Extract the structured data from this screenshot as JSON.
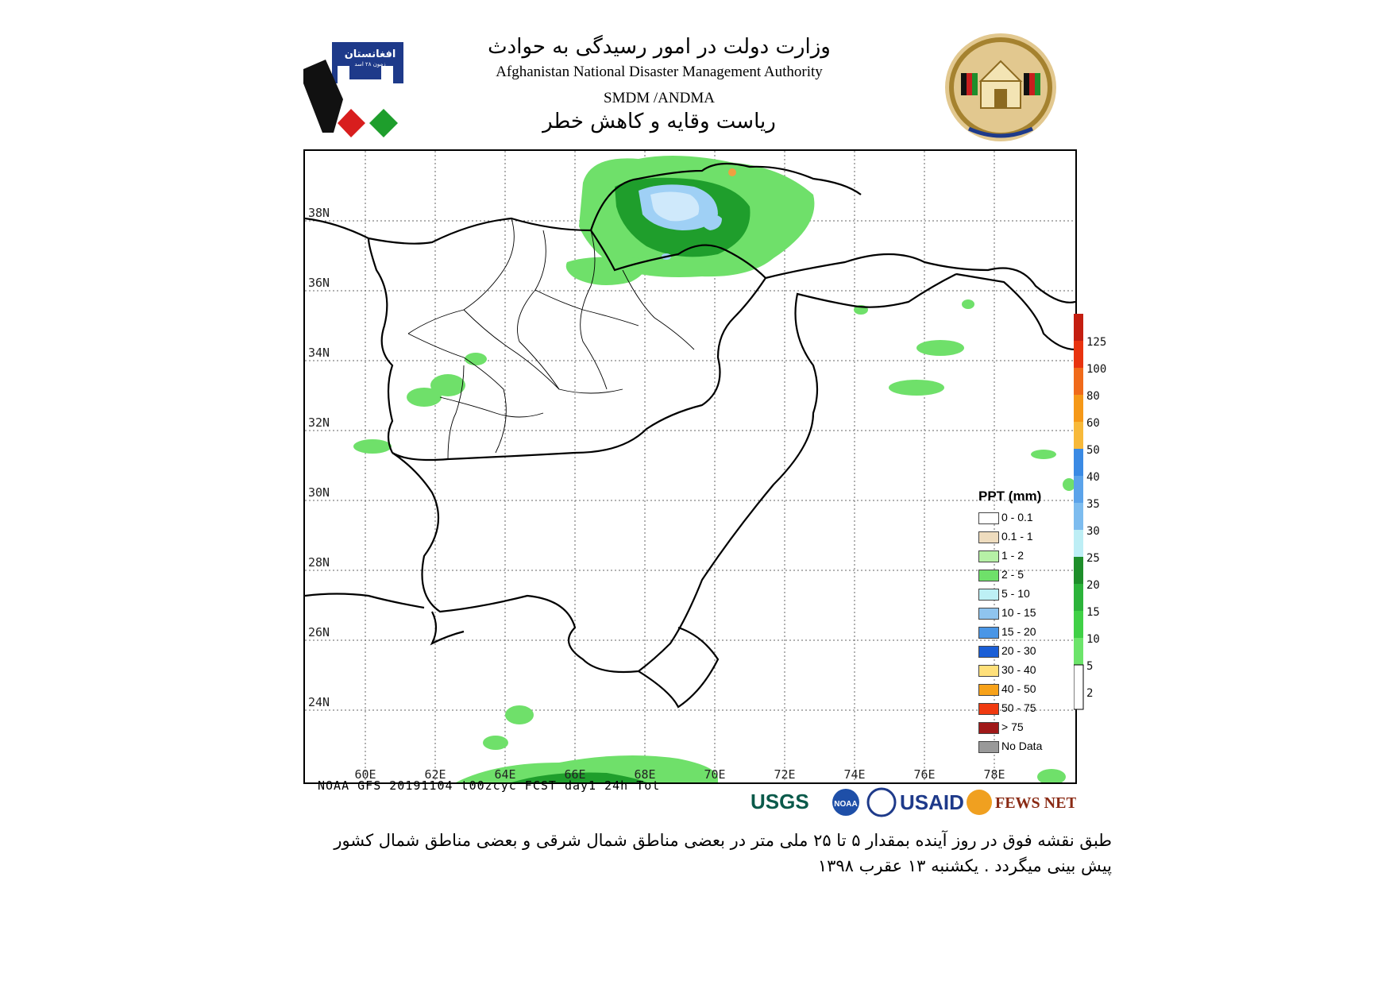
{
  "header": {
    "title_fa": "وزارت دولت در امور رسیدگی به حوادث",
    "title_en": "Afghanistan National Disaster Management Authority",
    "code": "SMDM /ANDMA",
    "subtitle_fa": "ریاست وقایه و کاهش خطر"
  },
  "left_logo": {
    "text": "افغانستان",
    "sub": "زمون ۲۸ اسد"
  },
  "map": {
    "lat_labels": [
      "38N",
      "36N",
      "34N",
      "32N",
      "30N",
      "28N",
      "26N",
      "24N"
    ],
    "lon_labels": [
      "60E",
      "62E",
      "64E",
      "66E",
      "68E",
      "70E",
      "72E",
      "74E",
      "76E",
      "78E"
    ],
    "model_note": "NOAA GFS 20191104 t00zcyc FCST day1 24h Tot",
    "legend": {
      "title": "PPT (mm)",
      "items": [
        {
          "label": "0 - 0.1",
          "color": "#ffffff"
        },
        {
          "label": "0.1 - 1",
          "color": "#eedcbe"
        },
        {
          "label": "1 - 2",
          "color": "#b6f0a6"
        },
        {
          "label": "2 - 5",
          "color": "#6fe06a"
        },
        {
          "label": "5 - 10",
          "color": "#bdf0f5"
        },
        {
          "label": "10 - 15",
          "color": "#8fc4ee"
        },
        {
          "label": "15 - 20",
          "color": "#4a96e6"
        },
        {
          "label": "20 - 30",
          "color": "#1a5ed6"
        },
        {
          "label": "30 - 40",
          "color": "#ffe07a"
        },
        {
          "label": "40 - 50",
          "color": "#f7a21a"
        },
        {
          "label": "50 - 75",
          "color": "#f03a10"
        },
        {
          "label": "> 75",
          "color": "#a01818"
        },
        {
          "label": "No Data",
          "color": "#999999"
        }
      ]
    },
    "colorbar": {
      "ticks": [
        "125",
        "100",
        "80",
        "60",
        "50",
        "40",
        "35",
        "30",
        "25",
        "20",
        "15",
        "10",
        "5",
        "2"
      ],
      "colors": [
        "#c41e10",
        "#e8330f",
        "#f06a1a",
        "#f59818",
        "#f7b93a",
        "#3a8ae4",
        "#5ba3ea",
        "#7dbcef",
        "#bdeef5",
        "#1e8e2a",
        "#2cb33a",
        "#40d046",
        "#6ce46a",
        "#ffffff"
      ]
    }
  },
  "partner_logos": [
    "USGS",
    "NOAA",
    "USAID",
    "FEWS NET"
  ],
  "caption": {
    "line1": "طبق نقشه فوق در روز آینده بمقدار ۵ تا ۲۵ ملی متر در بعضی مناطق شمال شرقی و بعضی مناطق شمال کشور",
    "line2": "پیش بینی میگردد . یکشنبه ۱۳ عقرب ۱۳۹۸"
  },
  "colors": {
    "rain_green": "#5fd65c",
    "rain_green_dark": "#1f9e2c",
    "rain_blue": "#9fd0f5",
    "accent_orange": "#f0a040"
  }
}
